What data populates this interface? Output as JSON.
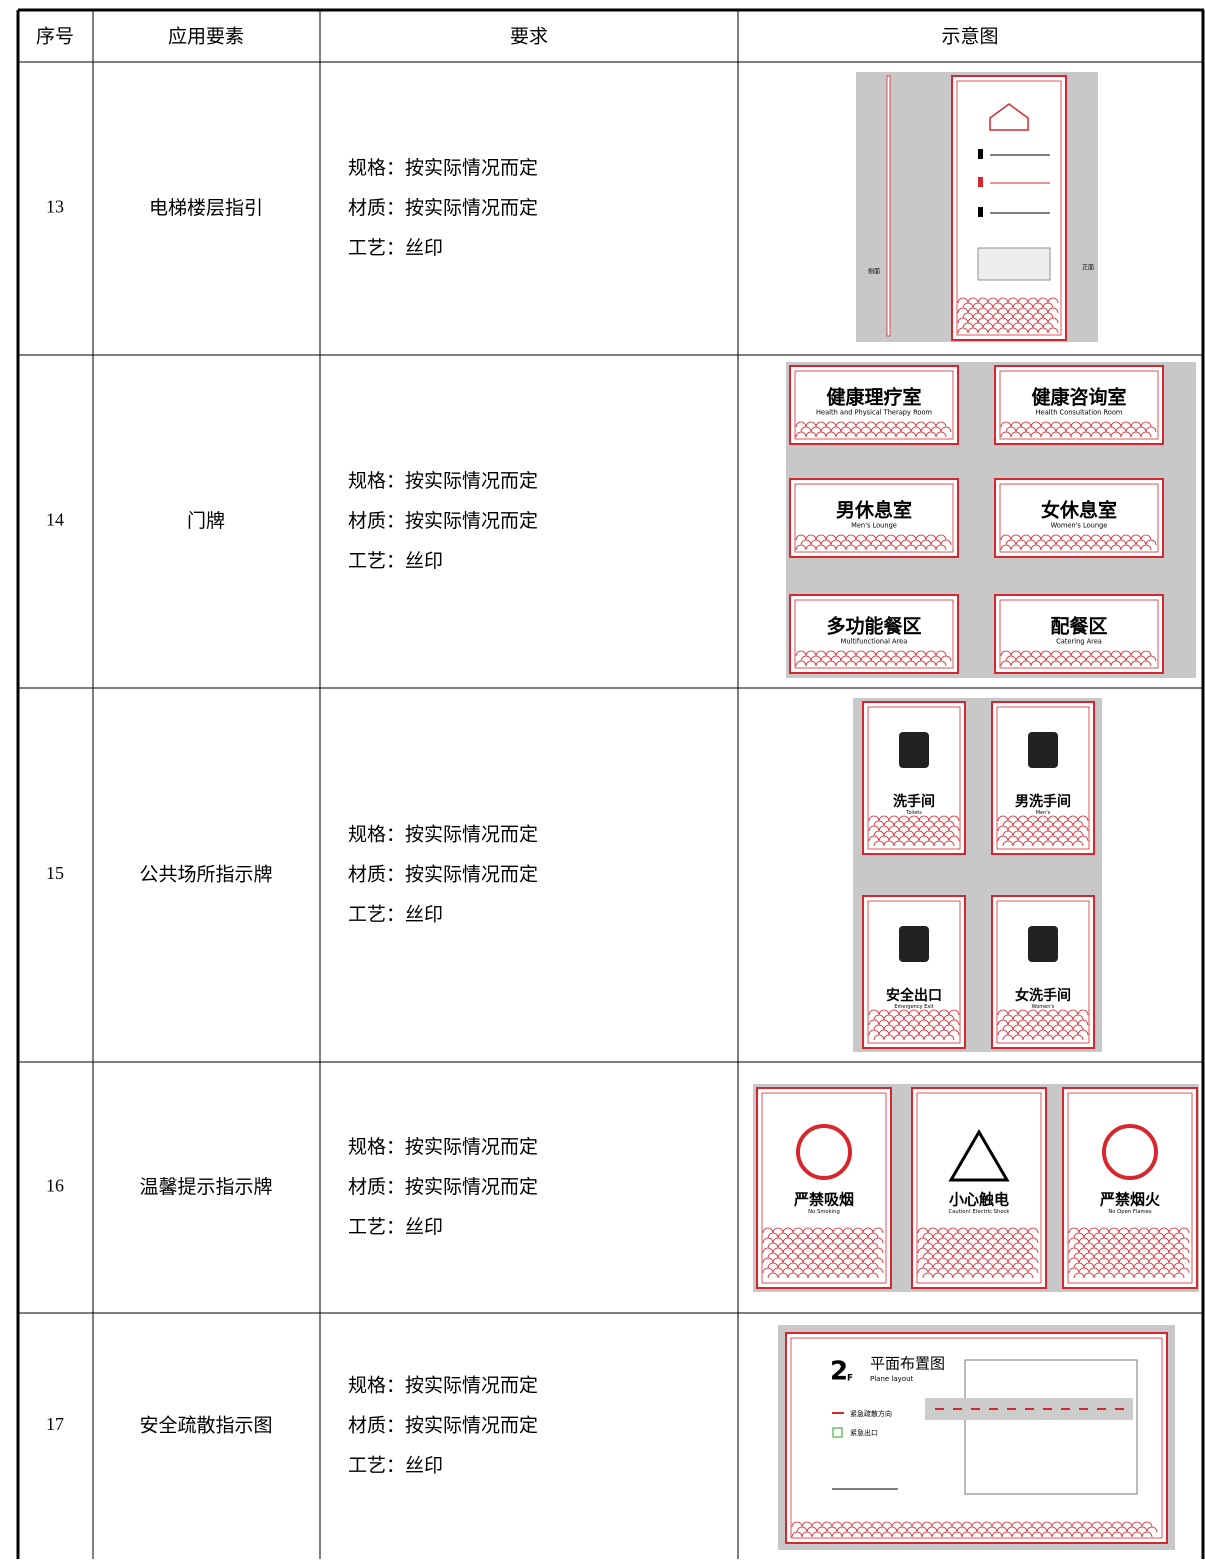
{
  "table": {
    "header": [
      "序号",
      "应用要素",
      "要求",
      "示意图"
    ],
    "rows": [
      {
        "number": "13",
        "element": "电梯楼层指引",
        "requirements": [
          "规格：按实际情况而定",
          "材质：按实际情况而定",
          "工艺：丝印"
        ],
        "illustration": {
          "side_label": "侧面",
          "front_label": "正面"
        }
      },
      {
        "number": "14",
        "element": "门牌",
        "requirements": [
          "规格：按实际情况而定",
          "材质：按实际情况而定",
          "工艺：丝印"
        ],
        "illustration": {
          "signs": [
            {
              "title": "健康理疗室",
              "subtitle": "Health and Physical Therapy Room"
            },
            {
              "title": "健康咨询室",
              "subtitle": "Health Consultation Room"
            },
            {
              "title": "男休息室",
              "subtitle": "Men's Lounge"
            },
            {
              "title": "女休息室",
              "subtitle": "Women's Lounge"
            },
            {
              "title": "多功能餐区",
              "subtitle": "Multifunctional Area"
            },
            {
              "title": "配餐区",
              "subtitle": "Catering Area"
            }
          ]
        }
      },
      {
        "number": "15",
        "element": "公共场所指示牌",
        "requirements": [
          "规格：按实际情况而定",
          "材质：按实际情况而定",
          "工艺：丝印"
        ],
        "illustration": {
          "signs": [
            {
              "title": "洗手间",
              "subtitle": "Toilets"
            },
            {
              "title": "男洗手间",
              "subtitle": "Men's"
            },
            {
              "title": "安全出口",
              "subtitle": "Emergency Exit"
            },
            {
              "title": "女洗手间",
              "subtitle": "Women's"
            }
          ]
        }
      },
      {
        "number": "16",
        "element": "温馨提示指示牌",
        "requirements": [
          "规格：按实际情况而定",
          "材质：按实际情况而定",
          "工艺：丝印"
        ],
        "illustration": {
          "signs": [
            {
              "title": "严禁吸烟",
              "subtitle": "No Smoking"
            },
            {
              "title": "小心触电",
              "subtitle": "Caution! Electric Shock"
            },
            {
              "title": "严禁烟火",
              "subtitle": "No Open Flames"
            }
          ]
        }
      },
      {
        "number": "17",
        "element": "安全疏散指示图",
        "requirements": [
          "规格：按实际情况而定",
          "材质：按实际情况而定",
          "工艺：丝印"
        ],
        "illustration": {
          "floor": "2",
          "floor_unit": "F",
          "title": "平面布置图",
          "subtitle": "Plane layout",
          "legend": [
            "紧急疏散方向",
            "紧急出口"
          ]
        }
      }
    ]
  }
}
